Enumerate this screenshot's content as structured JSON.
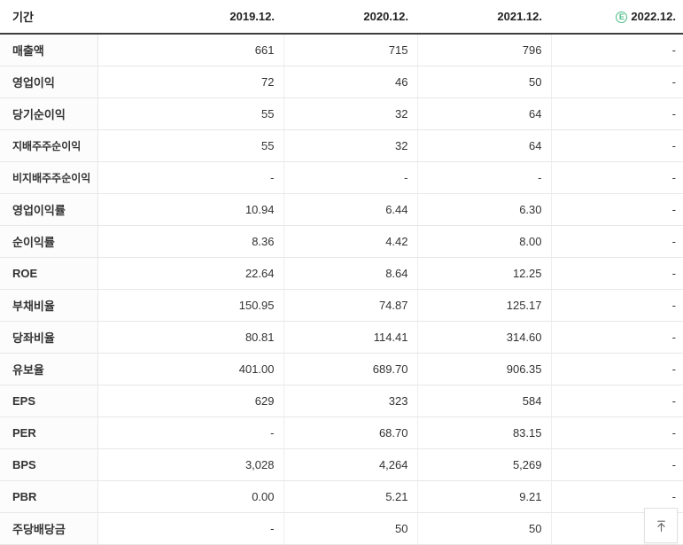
{
  "table": {
    "period_label": "기간",
    "estimate_icon": "E",
    "columns": [
      {
        "label": "2019.12.",
        "estimate": false
      },
      {
        "label": "2020.12.",
        "estimate": false
      },
      {
        "label": "2021.12.",
        "estimate": false
      },
      {
        "label": "2022.12.",
        "estimate": true
      }
    ],
    "rows": [
      {
        "label": "매출액",
        "sub": false,
        "values": [
          "661",
          "715",
          "796",
          "-"
        ]
      },
      {
        "label": "영업이익",
        "sub": false,
        "values": [
          "72",
          "46",
          "50",
          "-"
        ]
      },
      {
        "label": "당기순이익",
        "sub": false,
        "values": [
          "55",
          "32",
          "64",
          "-"
        ]
      },
      {
        "label": "지배주주순이익",
        "sub": true,
        "values": [
          "55",
          "32",
          "64",
          "-"
        ]
      },
      {
        "label": "비지배주주순이익",
        "sub": true,
        "values": [
          "-",
          "-",
          "-",
          "-"
        ]
      },
      {
        "label": "영업이익률",
        "sub": false,
        "values": [
          "10.94",
          "6.44",
          "6.30",
          "-"
        ]
      },
      {
        "label": "순이익률",
        "sub": false,
        "values": [
          "8.36",
          "4.42",
          "8.00",
          "-"
        ]
      },
      {
        "label": "ROE",
        "sub": false,
        "values": [
          "22.64",
          "8.64",
          "12.25",
          "-"
        ]
      },
      {
        "label": "부채비율",
        "sub": false,
        "values": [
          "150.95",
          "74.87",
          "125.17",
          "-"
        ]
      },
      {
        "label": "당좌비율",
        "sub": false,
        "values": [
          "80.81",
          "114.41",
          "314.60",
          "-"
        ]
      },
      {
        "label": "유보율",
        "sub": false,
        "values": [
          "401.00",
          "689.70",
          "906.35",
          "-"
        ]
      },
      {
        "label": "EPS",
        "sub": false,
        "values": [
          "629",
          "323",
          "584",
          "-"
        ]
      },
      {
        "label": "PER",
        "sub": false,
        "values": [
          "-",
          "68.70",
          "83.15",
          "-"
        ]
      },
      {
        "label": "BPS",
        "sub": false,
        "values": [
          "3,028",
          "4,264",
          "5,269",
          "-"
        ]
      },
      {
        "label": "PBR",
        "sub": false,
        "values": [
          "0.00",
          "5.21",
          "9.21",
          "-"
        ]
      },
      {
        "label": "주당배당금",
        "sub": false,
        "values": [
          "-",
          "50",
          "50",
          "-"
        ]
      }
    ]
  },
  "scroll_top_button": {
    "icon": "arrow-up-to-line"
  },
  "colors": {
    "accent_green": "#4cbb87",
    "header_border": "#3d3d3d",
    "header_text": "#222222",
    "text": "#333333",
    "row_border": "#e7e7e7",
    "column_border": "#eeeeee",
    "label_bg": "#fcfcfc",
    "button_border": "#e2e2e2",
    "button_icon": "#666666"
  }
}
